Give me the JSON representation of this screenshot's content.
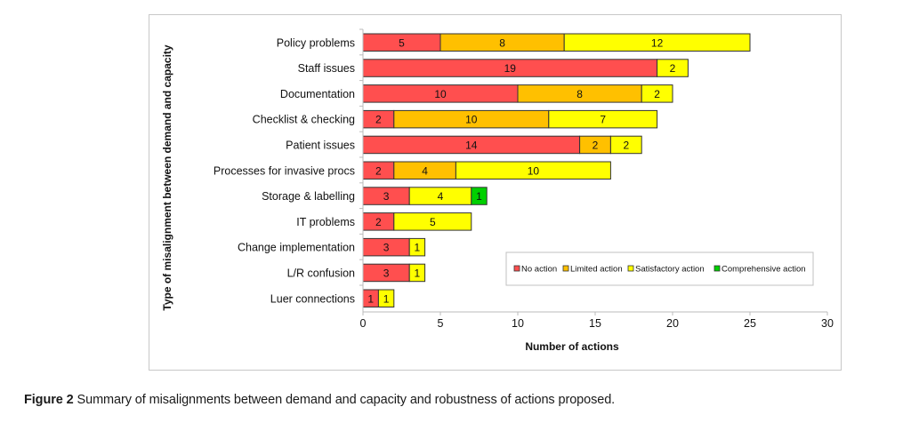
{
  "caption": {
    "figure_label": "Figure 2",
    "text": " Summary of misalignments between demand and capacity and robustness of actions proposed."
  },
  "chart_data": {
    "type": "bar",
    "orientation": "horizontal",
    "stacked": true,
    "title": "",
    "xlabel": "Number of actions",
    "ylabel": "Type of misalignment between demand and capacity",
    "xlim": [
      0,
      30
    ],
    "xticks": [
      0,
      5,
      10,
      15,
      20,
      25,
      30
    ],
    "grid": false,
    "legend_position": "bottom-right",
    "categories": [
      "Policy problems",
      "Staff issues",
      "Documentation",
      "Checklist & checking",
      "Patient issues",
      "Processes for invasive procs",
      "Storage & labelling",
      "IT problems",
      "Change implementation",
      "L/R confusion",
      "Luer connections"
    ],
    "series": [
      {
        "name": "No action",
        "color": "#ff4f4f",
        "values": [
          5,
          19,
          10,
          2,
          14,
          2,
          3,
          2,
          3,
          3,
          1
        ]
      },
      {
        "name": "Limited action",
        "color": "#ffc000",
        "values": [
          8,
          0,
          8,
          10,
          2,
          4,
          0,
          0,
          0,
          0,
          0
        ]
      },
      {
        "name": "Satisfactory action",
        "color": "#ffff00",
        "values": [
          12,
          2,
          2,
          7,
          2,
          10,
          4,
          5,
          1,
          1,
          1
        ]
      },
      {
        "name": "Comprehensive action",
        "color": "#00d000",
        "values": [
          0,
          0,
          0,
          0,
          0,
          0,
          1,
          0,
          0,
          0,
          0
        ]
      }
    ]
  }
}
